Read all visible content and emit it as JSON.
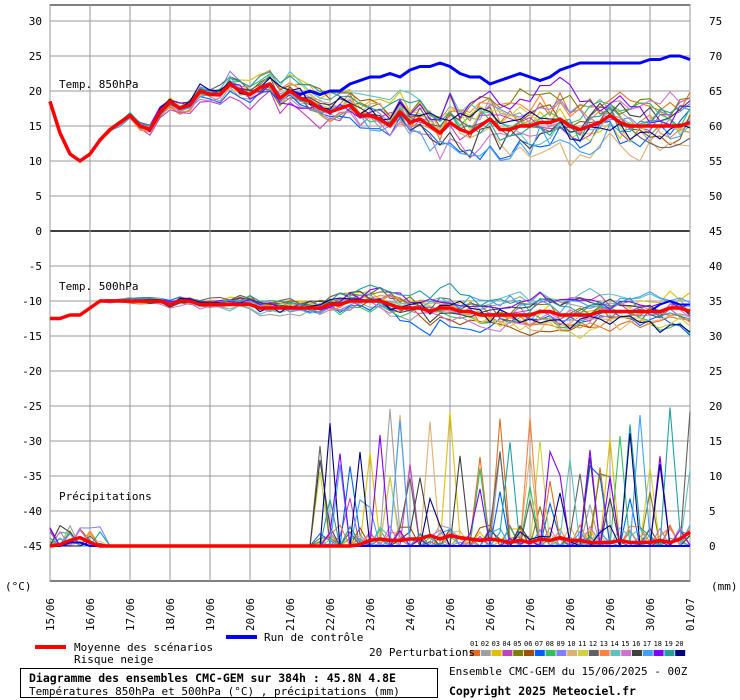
{
  "chart_data": {
    "type": "line",
    "title": "Diagramme des ensembles CMC-GEM sur 384h : 45.8N 4.8E",
    "subtitle": "Températures 850hPa et 500hPa (°C) , précipitations (mm)",
    "ensemble_info": "Ensemble CMC-GEM du 15/06/2025 - 00Z",
    "copyright": "Copyright 2025 Meteociel.fr",
    "x_labels": [
      "15/06",
      "16/06",
      "17/06",
      "18/06",
      "19/06",
      "20/06",
      "21/06",
      "22/06",
      "23/06",
      "24/06",
      "25/06",
      "26/06",
      "27/06",
      "28/06",
      "29/06",
      "30/06",
      "01/07"
    ],
    "y_left": {
      "label": "(°C)",
      "ticks": [
        30,
        25,
        20,
        15,
        10,
        5,
        0,
        -5,
        -10,
        -15,
        -20,
        -25,
        -30,
        -35,
        -40,
        -45
      ],
      "range": [
        -45,
        30
      ]
    },
    "y_right": {
      "label": "(mm)",
      "ticks": [
        75,
        70,
        65,
        60,
        55,
        50,
        45,
        40,
        35,
        30,
        25,
        20,
        15,
        10,
        5,
        0
      ],
      "range": [
        0,
        75
      ]
    },
    "panels": [
      {
        "name": "Temp. 850hPa",
        "y_axis": "left °C"
      },
      {
        "name": "Temp. 500hPa",
        "y_axis": "left °C"
      },
      {
        "name": "Précipitations",
        "y_axis": "right mm"
      }
    ],
    "time_step_hours": 6,
    "series": [
      {
        "name": "Moyenne des scénarios",
        "color": "#ff0000",
        "role": "mean",
        "t850": [
          18.5,
          14,
          11,
          10,
          11,
          13,
          14.5,
          15.5,
          16.5,
          15,
          14.5,
          17,
          18.5,
          17.5,
          18,
          20,
          19.5,
          19.5,
          21,
          20,
          19.5,
          20.5,
          21,
          19,
          20,
          19,
          18.5,
          17.5,
          17,
          17.5,
          18,
          16.5,
          16.5,
          16,
          15,
          17,
          15.5,
          16,
          15,
          14,
          15.5,
          14.5,
          14,
          15,
          16,
          14.5,
          14.5,
          15,
          15,
          15.5,
          15.5,
          16,
          15,
          14.5,
          15,
          15.5,
          16.5,
          15.5,
          15,
          15,
          15,
          15,
          15,
          15,
          15.5
        ],
        "t500": [
          -12.5,
          -12.5,
          -12,
          -12,
          -11,
          -10,
          -10,
          -10,
          -10,
          -10,
          -10,
          -10,
          -10.5,
          -10,
          -10,
          -10.5,
          -10.5,
          -10.5,
          -10.5,
          -10.5,
          -10.5,
          -11,
          -11,
          -11,
          -11,
          -11,
          -11,
          -11,
          -10.5,
          -10.5,
          -10,
          -10,
          -10,
          -10,
          -10.5,
          -11,
          -11,
          -11,
          -11.5,
          -11,
          -11,
          -11.5,
          -11.5,
          -12,
          -12,
          -12,
          -12,
          -12,
          -12,
          -11.5,
          -11.5,
          -12,
          -12,
          -12,
          -12,
          -11.5,
          -11.5,
          -11.5,
          -11.5,
          -11.5,
          -11.5,
          -11.5,
          -11,
          -11,
          -11.5
        ],
        "precip": [
          0,
          0.2,
          0.8,
          1.2,
          0.5,
          0,
          0,
          0,
          0,
          0,
          0,
          0,
          0,
          0,
          0,
          0,
          0,
          0,
          0,
          0,
          0,
          0,
          0,
          0,
          0,
          0,
          0,
          0,
          0,
          0,
          0,
          0.2,
          0.8,
          1,
          0.8,
          0.8,
          1,
          1,
          1.5,
          1,
          1.5,
          1.2,
          1,
          0.8,
          1,
          0.8,
          0.5,
          0.8,
          0.5,
          1,
          0.8,
          1.2,
          0.8,
          0.8,
          0.5,
          0.5,
          0.5,
          0.8,
          0.5,
          0.5,
          0.5,
          0.8,
          0.5,
          1,
          2
        ]
      },
      {
        "name": "Run de contrôle",
        "color": "#0000ff",
        "role": "control",
        "t850": [
          18.5,
          14,
          11,
          10,
          11,
          13,
          14.5,
          15.5,
          16.5,
          15,
          14.5,
          17,
          18.5,
          17.5,
          18,
          20,
          19.5,
          19.5,
          21,
          20,
          19.5,
          20.5,
          21,
          19,
          20,
          19.5,
          20,
          19.5,
          20,
          20,
          21,
          21.5,
          22,
          22,
          22.5,
          22,
          23,
          23.5,
          23.5,
          24,
          23.5,
          22.5,
          22,
          22,
          21,
          21.5,
          22,
          22.5,
          22,
          21.5,
          22,
          23,
          23.5,
          24,
          24,
          24,
          24,
          24,
          24,
          24,
          24.5,
          24.5,
          25,
          25,
          24.5
        ],
        "t500": [
          -12.5,
          -12.5,
          -12,
          -12,
          -11,
          -10,
          -10,
          -10,
          -10,
          -10,
          -10,
          -10,
          -10.5,
          -10,
          -10,
          -10.5,
          -10.5,
          -10.5,
          -10.5,
          -10.5,
          -10.5,
          -11,
          -11,
          -11,
          -11,
          -11,
          -11,
          -11,
          -10.5,
          -10.5,
          -10,
          -10,
          -10,
          -10,
          -10.5,
          -11,
          -11,
          -11,
          -11.5,
          -11,
          -11,
          -11.5,
          -11.5,
          -12,
          -12,
          -12,
          -12,
          -12,
          -12,
          -11.5,
          -11.5,
          -12,
          -12,
          -12,
          -12,
          -11.5,
          -11.5,
          -11.5,
          -11.5,
          -11.5,
          -11.5,
          -10.5,
          -10,
          -10.5,
          -10.5
        ],
        "precip": [
          0,
          0,
          0.5,
          0.5,
          0,
          0,
          0,
          0,
          0,
          0,
          0,
          0,
          0,
          0,
          0,
          0,
          0,
          0,
          0,
          0,
          0,
          0,
          0,
          0,
          0,
          0,
          0,
          0,
          0,
          0,
          0,
          0,
          0,
          0,
          0,
          0,
          0,
          0,
          0,
          0,
          0,
          0,
          0,
          0,
          0,
          0,
          0,
          0,
          0,
          0,
          0,
          0,
          0,
          0,
          0,
          0,
          0,
          0,
          0,
          0,
          0,
          0,
          0,
          0,
          0
        ]
      }
    ],
    "perturbations": {
      "count": 20,
      "labels": [
        "01",
        "02",
        "03",
        "04",
        "05",
        "06",
        "07",
        "08",
        "09",
        "10",
        "11",
        "12",
        "13",
        "14",
        "15",
        "16",
        "17",
        "18",
        "19",
        "20"
      ],
      "colors": [
        "#e07020",
        "#a0a0a0",
        "#e0c000",
        "#c040c0",
        "#808000",
        "#a05000",
        "#0060ff",
        "#30c060",
        "#8080ff",
        "#e0b070",
        "#d0d040",
        "#606060",
        "#ff8040",
        "#60c0c0",
        "#d070d0",
        "#404040",
        "#40a0ff",
        "#8000ff",
        "#20a0a0",
        "#000080"
      ]
    }
  },
  "legend": {
    "mean_label": "Moyenne des scénarios",
    "snow_label": "Risque neige",
    "control_label": "Run de contrôle",
    "perturbations_label": "20 Perturbations"
  }
}
